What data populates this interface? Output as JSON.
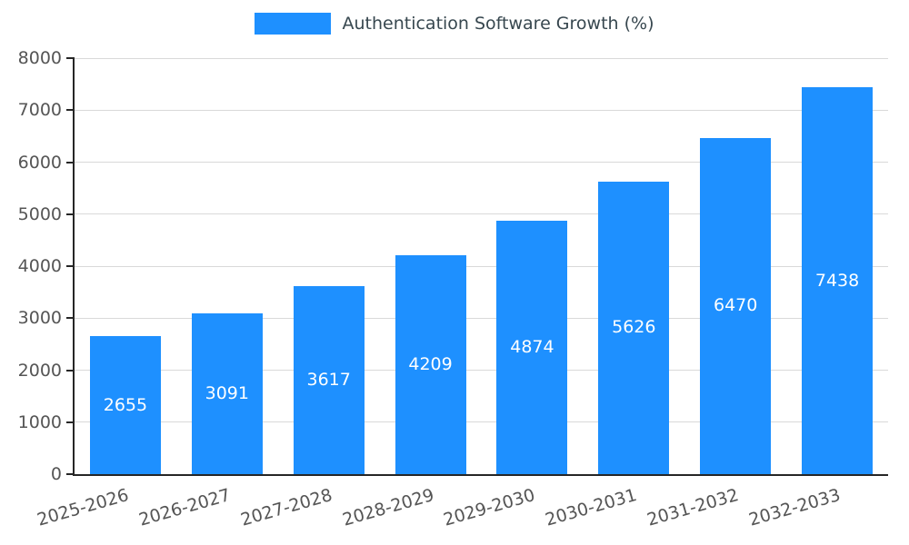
{
  "chart_data": {
    "type": "bar",
    "title": "Authentication Software Growth (%)",
    "legend_label": "Authentication Software Growth (%)",
    "categories": [
      "2025-2026",
      "2026-2027",
      "2027-2028",
      "2028-2029",
      "2029-2030",
      "2030-2031",
      "2031-2032",
      "2032-2033"
    ],
    "values": [
      2655,
      3091,
      3617,
      4209,
      4874,
      5626,
      6470,
      7438
    ],
    "xlabel": "",
    "ylabel": "",
    "ylim": [
      0,
      8000
    ],
    "ytick_step": 1000,
    "ytick_labels": [
      "0",
      "1000",
      "2000",
      "3000",
      "4000",
      "5000",
      "6000",
      "7000",
      "8000"
    ],
    "grid": true,
    "legend_position": "top-center",
    "value_labels_shown": true,
    "colors": {
      "bar": "#1e90ff",
      "value_label": "#ffffff",
      "axis_text": "#555555",
      "title_text": "#37474f",
      "gridline": "#d9d9d9",
      "axis_line": "#262626"
    }
  }
}
